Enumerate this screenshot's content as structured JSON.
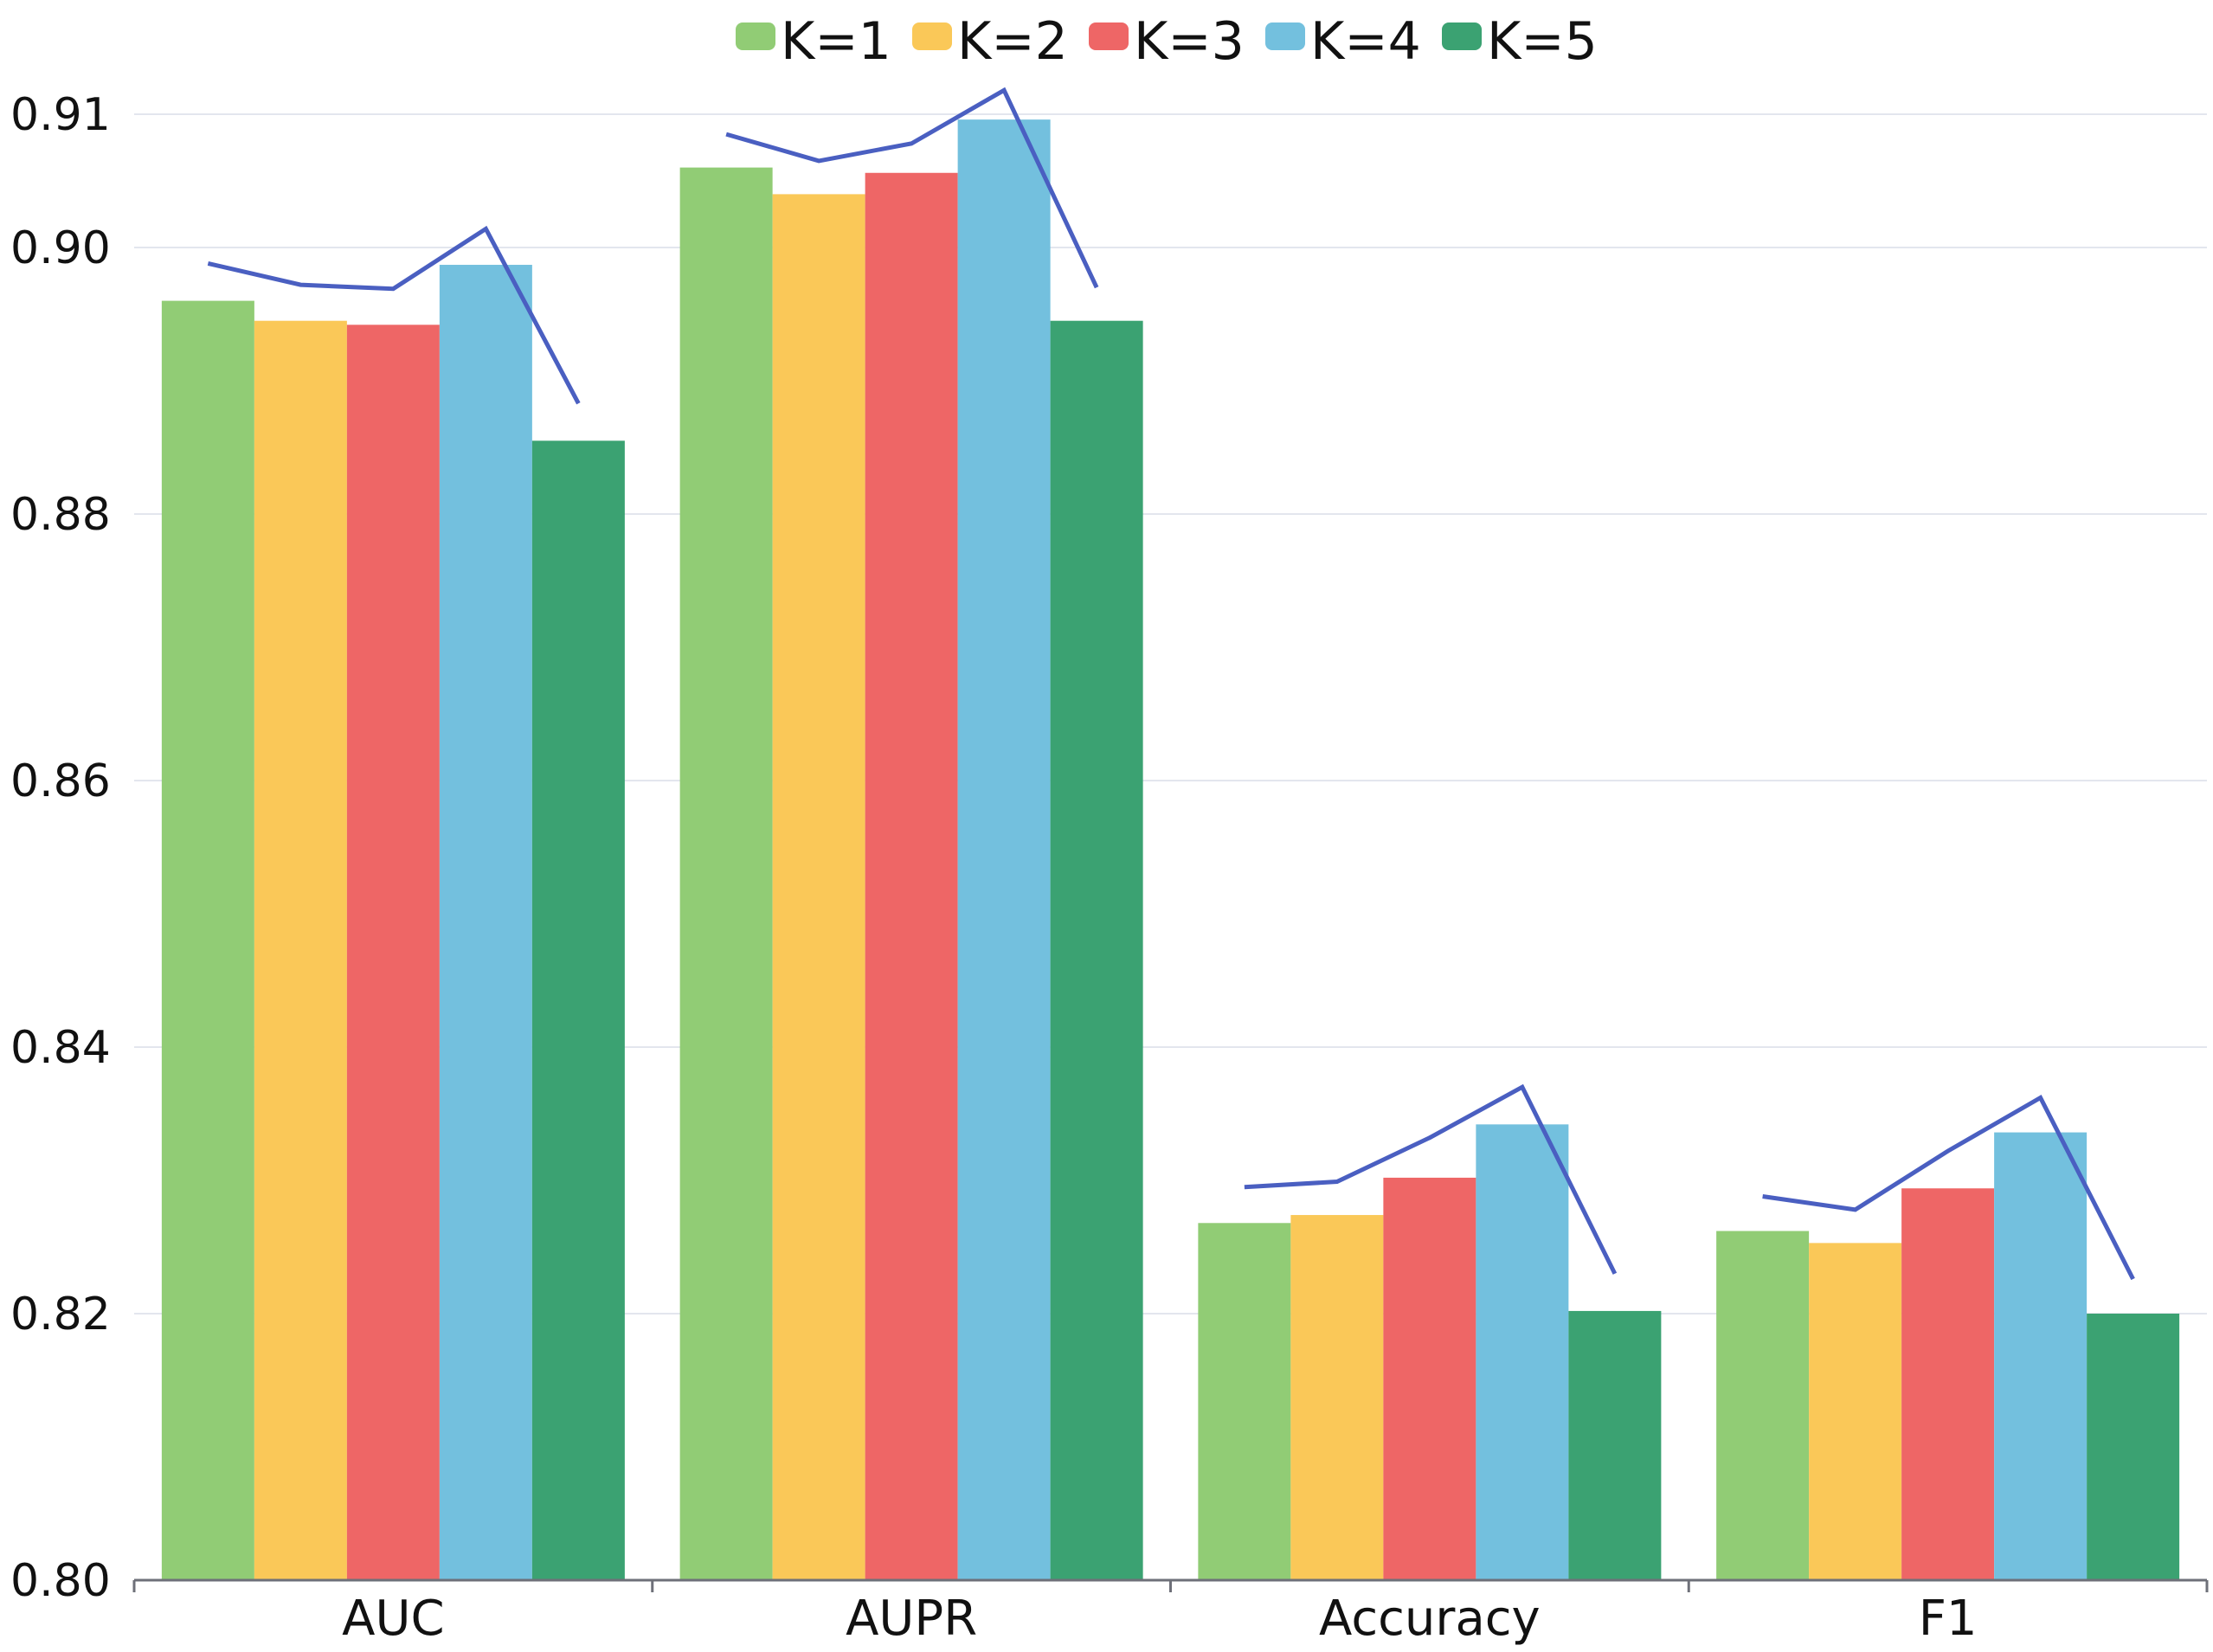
{
  "chart_data": {
    "type": "bar",
    "categories": [
      "AUC",
      "AUPR",
      "Accuracy",
      "F1"
    ],
    "series": [
      {
        "name": "K=1",
        "color": "#91CC75",
        "values": [
          0.896,
          0.906,
          0.8268,
          0.8262
        ]
      },
      {
        "name": "K=2",
        "color": "#FAC858",
        "values": [
          0.8945,
          0.904,
          0.8274,
          0.8253
        ]
      },
      {
        "name": "K=3",
        "color": "#EE6666",
        "values": [
          0.8942,
          0.9056,
          0.8302,
          0.8294
        ]
      },
      {
        "name": "K=4",
        "color": "#73C0DE",
        "values": [
          0.8987,
          0.9096,
          0.8342,
          0.8336
        ]
      },
      {
        "name": "K=5",
        "color": "#3BA272",
        "values": [
          0.8855,
          0.8945,
          0.8202,
          0.82
        ]
      }
    ],
    "trend_line": {
      "color": "#4A5FC1",
      "values": [
        [
          0.8988,
          0.8972,
          0.8969,
          0.9014,
          0.8883
        ],
        [
          0.9085,
          0.9065,
          0.9078,
          0.9118,
          0.897
        ],
        [
          0.8295,
          0.8299,
          0.8332,
          0.837,
          0.823
        ],
        [
          0.8288,
          0.8278,
          0.8322,
          0.8362,
          0.8226
        ]
      ]
    },
    "y_ticks": [
      "0.80",
      "0.82",
      "0.84",
      "0.86",
      "0.88",
      "0.90",
      "0.91"
    ],
    "y_tick_values": [
      0.8,
      0.82,
      0.84,
      0.86,
      0.88,
      0.9,
      0.91
    ],
    "ylim": [
      0.8,
      0.91
    ],
    "grid": true,
    "legend_position": "top-center",
    "title": "",
    "xlabel": "",
    "ylabel": ""
  }
}
